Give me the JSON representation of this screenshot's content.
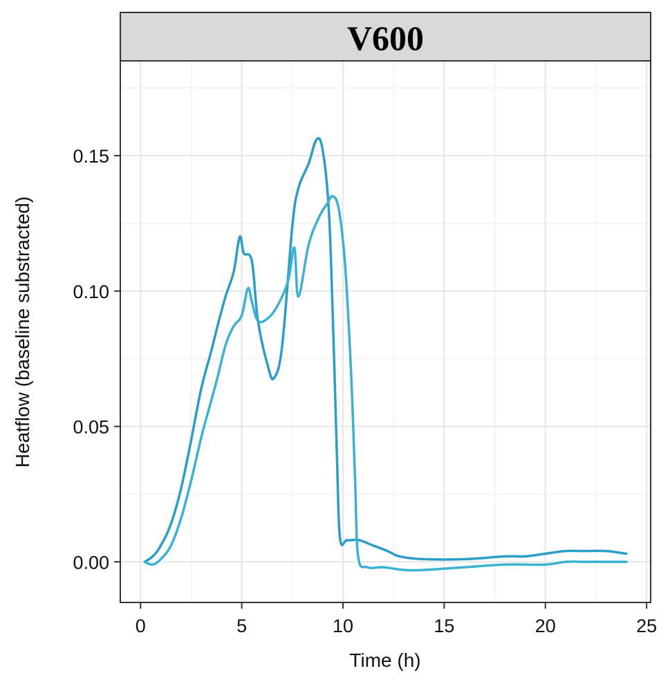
{
  "chart_data": {
    "type": "line",
    "title": "V600",
    "xlabel": "Time (h)",
    "ylabel": "Heatflow (baseline substracted)",
    "xlim": [
      -1,
      25.2
    ],
    "ylim": [
      -0.015,
      0.185
    ],
    "x_ticks": [
      0,
      5,
      10,
      15,
      20,
      25
    ],
    "y_ticks": [
      0.0,
      0.05,
      0.1,
      0.15
    ],
    "x_tick_labels": [
      "0",
      "5",
      "10",
      "15",
      "20",
      "25"
    ],
    "y_tick_labels": [
      "0.00",
      "0.05",
      "0.10",
      "0.15"
    ],
    "grid": true,
    "legend": "none",
    "series": [
      {
        "color": "#2a9ec8",
        "x": [
          0.2,
          0.6,
          1.0,
          1.5,
          2.0,
          2.5,
          3.0,
          3.5,
          3.8,
          4.2,
          4.6,
          4.9,
          5.1,
          5.5,
          5.8,
          6.3,
          6.6,
          7.0,
          7.5,
          7.8,
          8.3,
          8.7,
          9.0,
          9.3,
          9.5,
          9.7,
          9.85,
          10.2,
          10.8,
          11.5,
          12.2,
          12.8,
          14,
          16,
          18,
          19,
          20,
          21,
          22,
          23,
          24
        ],
        "y": [
          0.0,
          0.002,
          0.006,
          0.014,
          0.027,
          0.045,
          0.064,
          0.078,
          0.087,
          0.098,
          0.107,
          0.12,
          0.114,
          0.111,
          0.089,
          0.072,
          0.068,
          0.08,
          0.124,
          0.138,
          0.147,
          0.156,
          0.152,
          0.13,
          0.09,
          0.04,
          0.009,
          0.008,
          0.008,
          0.006,
          0.004,
          0.002,
          0.001,
          0.001,
          0.002,
          0.002,
          0.003,
          0.004,
          0.004,
          0.004,
          0.003
        ]
      },
      {
        "color": "#3ab2d4",
        "x": [
          0.2,
          0.6,
          1.0,
          1.5,
          2.0,
          2.5,
          3.0,
          3.4,
          3.8,
          4.2,
          4.6,
          5.0,
          5.3,
          5.5,
          5.8,
          6.3,
          6.8,
          7.3,
          7.6,
          7.8,
          8.3,
          8.8,
          9.2,
          9.5,
          9.8,
          10.1,
          10.4,
          10.6,
          10.75,
          11.2,
          12,
          13,
          14,
          16,
          18,
          20,
          21,
          22,
          23,
          24
        ],
        "y": [
          0.0,
          -0.001,
          0.001,
          0.006,
          0.016,
          0.03,
          0.046,
          0.057,
          0.068,
          0.08,
          0.087,
          0.091,
          0.101,
          0.096,
          0.089,
          0.09,
          0.095,
          0.104,
          0.116,
          0.098,
          0.117,
          0.127,
          0.132,
          0.135,
          0.13,
          0.11,
          0.07,
          0.03,
          0.002,
          -0.002,
          -0.002,
          -0.003,
          -0.003,
          -0.002,
          -0.001,
          -0.001,
          0.0,
          0.0,
          0.0,
          0.0
        ]
      }
    ]
  }
}
